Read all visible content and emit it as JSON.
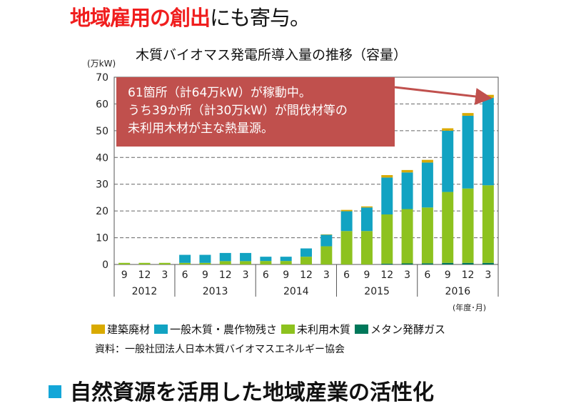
{
  "headline": {
    "highlight": "地域雇用の創出",
    "rest": "にも寄与。"
  },
  "colors": {
    "construction": "#d9aa00",
    "general": "#12a3c2",
    "unused": "#8dc21f",
    "methane": "#00785a",
    "callout": "#c0504d",
    "headline_red": "#f01e1e"
  },
  "callout": {
    "line1": "61箇所（計64万kW）が稼動中。",
    "line2": "うち39か所（計30万kW）が間伐材等の",
    "line3": "未利用木材が主な熱量源。"
  },
  "footer": {
    "source": "資料：一般社団法人日本木質バイオマスエネルギー協会",
    "next_heading": "自然資源を活用した地域産業の活性化"
  },
  "chart_data": {
    "type": "bar",
    "stacked": true,
    "title": "木質バイオマス発電所導入量の推移（容量）",
    "ylabel": "(万kW)",
    "xlabel": "(年度･月)",
    "ylim": [
      0,
      70
    ],
    "yticks": [
      0,
      10,
      20,
      30,
      40,
      50,
      60,
      70
    ],
    "grid": "horizontal-dashed",
    "legend_position": "bottom",
    "categories": [
      "9",
      "12",
      "3",
      "6",
      "9",
      "12",
      "3",
      "6",
      "9",
      "12",
      "3",
      "6",
      "9",
      "12",
      "3",
      "6",
      "9",
      "12",
      "3"
    ],
    "years": [
      {
        "label": "2012",
        "count": 3
      },
      {
        "label": "2013",
        "count": 4
      },
      {
        "label": "2014",
        "count": 4
      },
      {
        "label": "2015",
        "count": 4
      },
      {
        "label": "2016",
        "count": 4
      }
    ],
    "series": [
      {
        "name": "メタン発酵ガス",
        "key": "methane",
        "values": [
          0,
          0,
          0,
          0,
          0,
          0,
          0,
          0,
          0,
          0,
          0,
          0,
          0,
          0.3,
          0.4,
          0.45,
          0.6,
          0.6,
          0.6
        ]
      },
      {
        "name": "未利用木質",
        "key": "unused",
        "values": [
          0.6,
          0.6,
          0.6,
          0.6,
          0.6,
          1.25,
          1.25,
          1.3,
          1.3,
          2.9,
          6.8,
          12.5,
          12.5,
          18.4,
          20.3,
          20.85,
          26.5,
          27.8,
          29.0
        ]
      },
      {
        "name": "一般木質・農作物残さ",
        "key": "general",
        "values": [
          0,
          0,
          0,
          3.0,
          3.0,
          3.05,
          3.05,
          1.6,
          1.6,
          3.1,
          4.3,
          7.4,
          8.8,
          13.8,
          13.7,
          16.8,
          22.9,
          27.2,
          32.7
        ]
      },
      {
        "name": "建築廃材",
        "key": "construction",
        "values": [
          0,
          0,
          0,
          0,
          0,
          0,
          0,
          0,
          0,
          0,
          0.15,
          0.5,
          0.4,
          0.9,
          0.9,
          1.0,
          0.9,
          1.0,
          1.1
        ]
      }
    ]
  }
}
